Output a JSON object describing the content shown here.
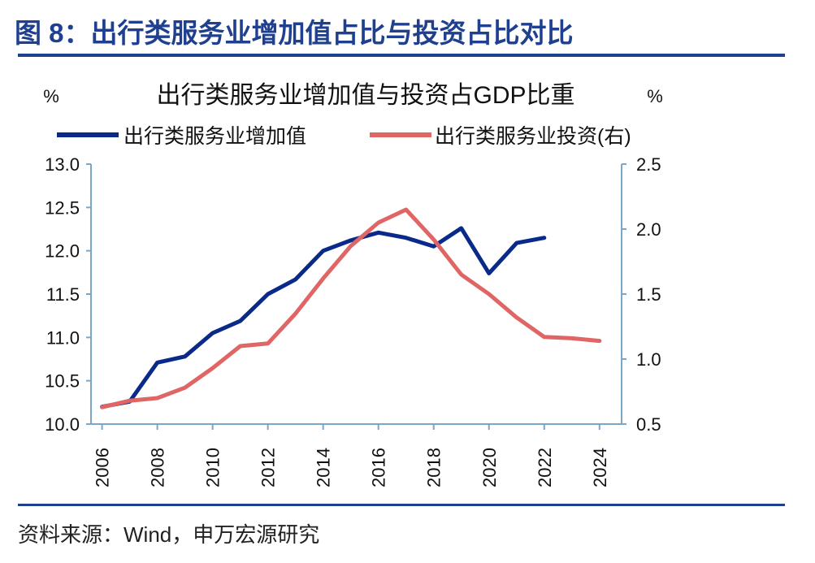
{
  "figure": {
    "title": "图 8：出行类服务业增加值占比与投资占比对比",
    "source": "资料来源：Wind，申万宏源研究"
  },
  "chart_data": {
    "type": "line",
    "title": "出行类服务业增加值与投资占GDP比重",
    "y_left_unit": "%",
    "y_right_unit": "%",
    "ylim_left": [
      10.0,
      13.0
    ],
    "ylim_right": [
      0.5,
      2.5
    ],
    "y_left_ticks": [
      "10.0",
      "10.5",
      "11.0",
      "11.5",
      "12.0",
      "12.5",
      "13.0"
    ],
    "y_right_ticks": [
      "0.5",
      "1.0",
      "1.5",
      "2.0",
      "2.5"
    ],
    "x_ticks": [
      "2006",
      "2008",
      "2010",
      "2012",
      "2014",
      "2016",
      "2018",
      "2020",
      "2022",
      "2024"
    ],
    "xlim": [
      2005.6,
      2024.8
    ],
    "legend_position": "top",
    "series": [
      {
        "name": "出行类服务业增加值",
        "axis": "left",
        "color": "#0a2a8a",
        "x": [
          2006,
          2007,
          2008,
          2009,
          2010,
          2011,
          2012,
          2013,
          2014,
          2015,
          2016,
          2017,
          2018,
          2019,
          2020,
          2021,
          2022
        ],
        "values": [
          10.2,
          10.26,
          10.71,
          10.78,
          11.05,
          11.19,
          11.5,
          11.67,
          12.0,
          12.12,
          12.21,
          12.15,
          12.05,
          12.26,
          11.74,
          12.09,
          12.15
        ]
      },
      {
        "name": "出行类服务业投资(右)",
        "axis": "right",
        "color": "#e06666",
        "x": [
          2006,
          2007,
          2008,
          2009,
          2010,
          2011,
          2012,
          2013,
          2014,
          2015,
          2016,
          2017,
          2018,
          2019,
          2020,
          2021,
          2022,
          2023,
          2024
        ],
        "values": [
          0.63,
          0.68,
          0.7,
          0.78,
          0.93,
          1.1,
          1.12,
          1.35,
          1.62,
          1.87,
          2.05,
          2.15,
          1.92,
          1.65,
          1.5,
          1.32,
          1.17,
          1.16,
          1.14
        ]
      }
    ],
    "grid": false
  }
}
